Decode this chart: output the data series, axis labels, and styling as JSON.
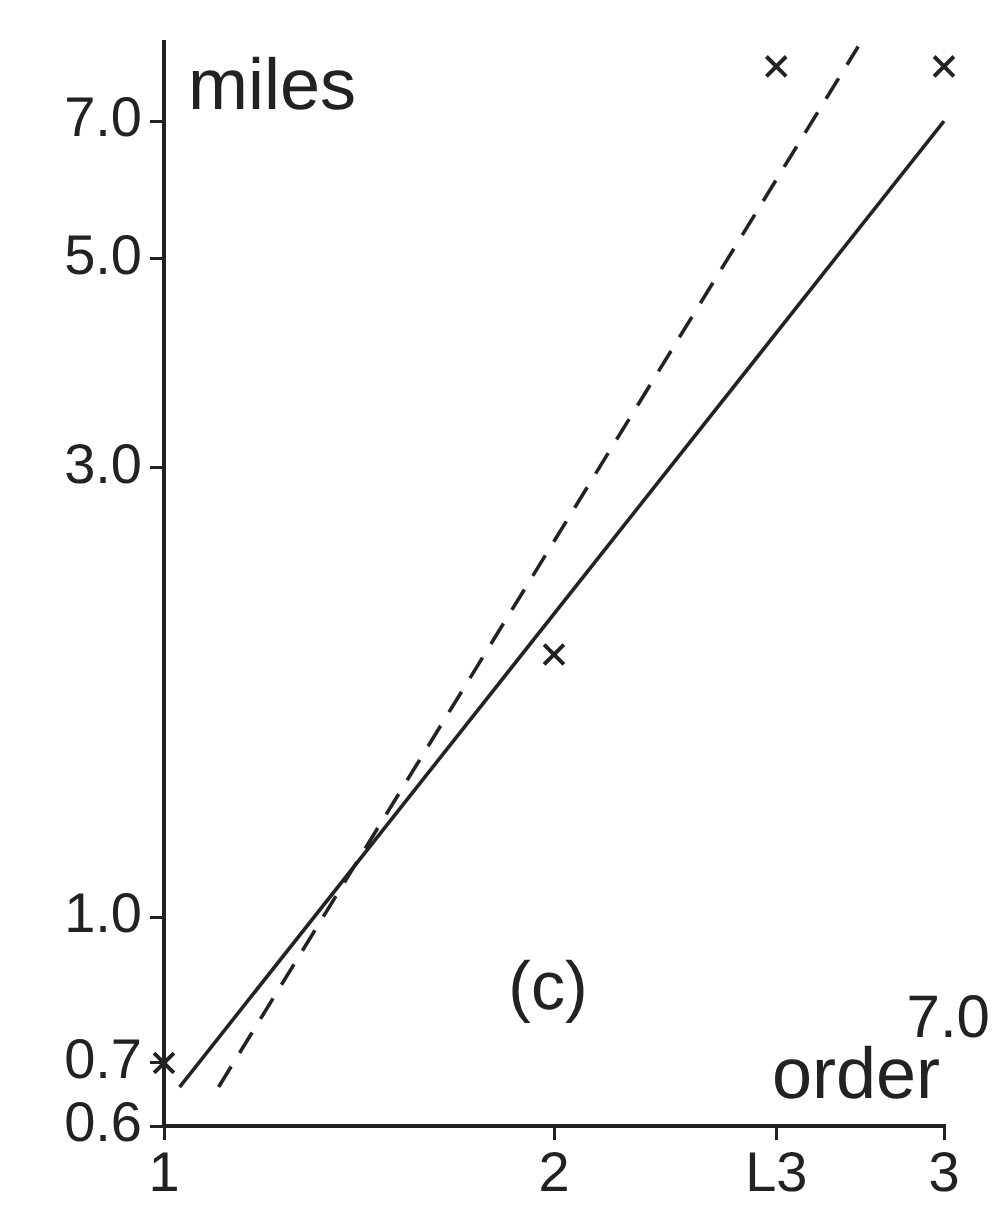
{
  "chart_data": {
    "type": "scatter",
    "xlabel": "order",
    "ylabel": "miles",
    "annotations": [
      "(c)",
      "7.0"
    ],
    "log": "y",
    "xlim": [
      1,
      3
    ],
    "ylim": [
      0.6,
      8.5
    ],
    "xticks": [
      1,
      2,
      {
        "value": 2.57,
        "label": "L3"
      },
      3
    ],
    "yticks": [
      0.6,
      0.7,
      {
        "value": 1,
        "label": "1.0"
      },
      {
        "value": 3,
        "label": "3.0"
      },
      {
        "value": 5,
        "label": "5.0"
      },
      {
        "value": 7,
        "label": "7.0"
      }
    ],
    "series": [
      {
        "color": "#222222",
        "x": [
          1,
          2,
          2.57,
          3
        ],
        "values": [
          0.7,
          1.9,
          8.0,
          8.0
        ],
        "marker": "cross"
      },
      {
        "type": "line",
        "color": "#222222",
        "x": [
          1.04,
          3
        ],
        "values": [
          0.66,
          7.0
        ],
        "marker": "none",
        "line_style": "solid"
      },
      {
        "type": "line",
        "color": "#222222",
        "x": [
          1.14,
          2.78
        ],
        "values": [
          0.66,
          8.4
        ],
        "marker": "none",
        "line_style": "dashed"
      }
    ]
  }
}
